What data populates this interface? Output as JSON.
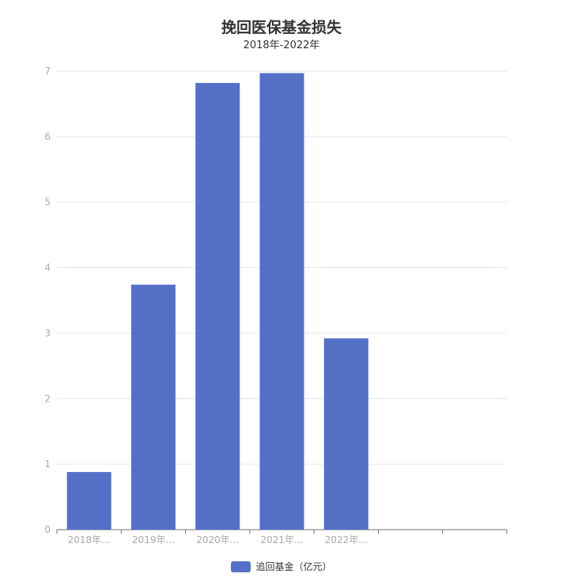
{
  "chart_data": {
    "type": "bar",
    "title": "挽回医保基金损失",
    "subtitle": "2018年-2022年",
    "categories": [
      "2018年...",
      "2019年...",
      "2020年...",
      "2021年...",
      "2022年...",
      "",
      ""
    ],
    "series": [
      {
        "name": "追回基金（亿元）",
        "values": [
          0.88,
          3.74,
          6.82,
          6.97,
          2.92,
          null,
          null
        ]
      }
    ],
    "ylim": [
      0,
      7
    ],
    "yticks": [
      0,
      1,
      2,
      3,
      4,
      5,
      6,
      7
    ],
    "grid": true,
    "legend_position": "bottom-center",
    "colors": {
      "bar": "#5470c6",
      "grid": "#e0e6f1",
      "axis": "#6e7079",
      "tick_label": "#aaaaaa"
    }
  }
}
